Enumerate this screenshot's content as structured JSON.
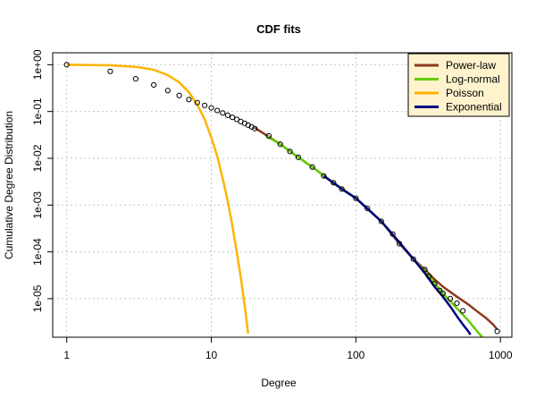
{
  "chart_data": {
    "type": "line",
    "title": "CDF fits",
    "xlabel": "Degree",
    "ylabel": "Cumulative Degree Distribution",
    "x_scale": "log",
    "y_scale": "log",
    "xlim": [
      0.8,
      1200
    ],
    "ylim": [
      1.5e-06,
      1.8
    ],
    "grid": true,
    "x_ticks": [
      {
        "value": 1,
        "label": "1"
      },
      {
        "value": 10,
        "label": "10"
      },
      {
        "value": 100,
        "label": "100"
      },
      {
        "value": 1000,
        "label": "1000"
      }
    ],
    "y_ticks": [
      {
        "value": 1,
        "label": "1e+00"
      },
      {
        "value": 0.1,
        "label": "1e-01"
      },
      {
        "value": 0.01,
        "label": "1e-02"
      },
      {
        "value": 0.001,
        "label": "1e-03"
      },
      {
        "value": 0.0001,
        "label": "1e-04"
      },
      {
        "value": 1e-05,
        "label": "1e-05"
      }
    ],
    "legend_position": "top-right",
    "empirical": {
      "x": [
        1,
        2,
        3,
        4,
        5,
        6,
        7,
        8,
        9,
        10,
        11,
        12,
        13,
        14,
        15,
        16,
        17,
        18,
        19,
        20,
        25,
        30,
        35,
        40,
        50,
        60,
        70,
        80,
        100,
        120,
        150,
        180,
        200,
        250,
        300,
        320,
        350,
        380,
        400,
        450,
        500,
        550,
        950
      ],
      "y": [
        1.0,
        0.72,
        0.5,
        0.37,
        0.28,
        0.22,
        0.18,
        0.155,
        0.135,
        0.12,
        0.105,
        0.093,
        0.083,
        0.075,
        0.068,
        0.061,
        0.056,
        0.051,
        0.047,
        0.043,
        0.03,
        0.02,
        0.014,
        0.0105,
        0.0065,
        0.0042,
        0.003,
        0.0022,
        0.0014,
        0.00085,
        0.00045,
        0.00024,
        0.00015,
        7e-05,
        4.2e-05,
        3e-05,
        2.1e-05,
        1.5e-05,
        1.3e-05,
        1e-05,
        8e-06,
        5.5e-06,
        2e-06
      ]
    },
    "series": [
      {
        "name": "Power-law",
        "color": "#8B3A1A",
        "x": [
          20,
          30,
          40,
          50,
          70,
          100,
          150,
          200,
          250,
          300,
          350,
          400,
          500,
          600,
          700,
          800,
          900,
          950
        ],
        "y": [
          0.045,
          0.02,
          0.0105,
          0.0065,
          0.003,
          0.0014,
          0.00045,
          0.00015,
          7e-05,
          4.2e-05,
          2.6e-05,
          1.8e-05,
          1.1e-05,
          7.5e-06,
          5.2e-06,
          3.8e-06,
          2.7e-06,
          2.2e-06
        ]
      },
      {
        "name": "Log-normal",
        "color": "#66CC00",
        "x": [
          24,
          30,
          40,
          50,
          70,
          100,
          150,
          200,
          250,
          300,
          350,
          400,
          500,
          600,
          700,
          750
        ],
        "y": [
          0.03,
          0.02,
          0.0105,
          0.0065,
          0.003,
          0.0014,
          0.00045,
          0.00016,
          7e-05,
          3.8e-05,
          2.2e-05,
          1.3e-05,
          6.2e-06,
          3.4e-06,
          1.9e-06,
          1.5e-06
        ]
      },
      {
        "name": "Poisson",
        "color": "#FFB300",
        "x": [
          1,
          2,
          3,
          4,
          5,
          6,
          7,
          8,
          9,
          10,
          11,
          12,
          13,
          14,
          15,
          16,
          17,
          18
        ],
        "y": [
          1.0,
          0.97,
          0.9,
          0.78,
          0.6,
          0.42,
          0.26,
          0.14,
          0.068,
          0.028,
          0.011,
          0.0037,
          0.0012,
          0.00035,
          0.0001,
          2.8e-05,
          7.3e-06,
          1.8e-06
        ]
      },
      {
        "name": "Exponential",
        "color": "#000080",
        "x": [
          60,
          80,
          100,
          150,
          200,
          250,
          300,
          350,
          400,
          450,
          500,
          550,
          600,
          620
        ],
        "y": [
          0.0042,
          0.0022,
          0.0014,
          0.00045,
          0.00016,
          7e-05,
          3.5e-05,
          1.8e-05,
          1.1e-05,
          6.8e-06,
          4.2e-06,
          2.8e-06,
          2e-06,
          1.7e-06
        ]
      }
    ]
  }
}
